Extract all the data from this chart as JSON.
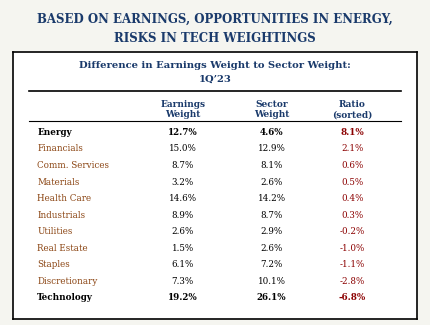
{
  "title_line1": "BASED ON EARNINGS, OPPORTUNITIES IN ENERGY,",
  "title_line2": "RISKS IN TECH WEIGHTINGS",
  "title_color": "#1a3a6b",
  "table_title_line1": "Difference in Earnings Weight to Sector Weight:",
  "table_title_line2": "1Q’23",
  "col_headers": [
    "Earnings\nWeight",
    "Sector\nWeight",
    "Ratio\n(sorted)"
  ],
  "sectors": [
    "Energy",
    "Financials",
    "Comm. Services",
    "Materials",
    "Health Care",
    "Industrials",
    "Utilities",
    "Real Estate",
    "Staples",
    "Discretionary",
    "Technology"
  ],
  "earnings_weight": [
    "12.7%",
    "15.0%",
    "8.7%",
    "3.2%",
    "14.6%",
    "8.9%",
    "2.6%",
    "1.5%",
    "6.1%",
    "7.3%",
    "19.2%"
  ],
  "sector_weight": [
    "4.6%",
    "12.9%",
    "8.1%",
    "2.6%",
    "14.2%",
    "8.7%",
    "2.9%",
    "2.6%",
    "7.2%",
    "10.1%",
    "26.1%"
  ],
  "ratio": [
    "8.1%",
    "2.1%",
    "0.6%",
    "0.5%",
    "0.4%",
    "0.3%",
    "-0.2%",
    "-1.0%",
    "-1.1%",
    "-2.8%",
    "-6.8%"
  ],
  "bold_rows": [
    0,
    10
  ],
  "positive_ratio_color": "#8b0000",
  "negative_ratio_color": "#8b0000",
  "sector_color": "#8b4513",
  "header_color": "#1a3a6b",
  "table_title_color": "#1a3a6b",
  "bg_color": "#f5f5f0"
}
